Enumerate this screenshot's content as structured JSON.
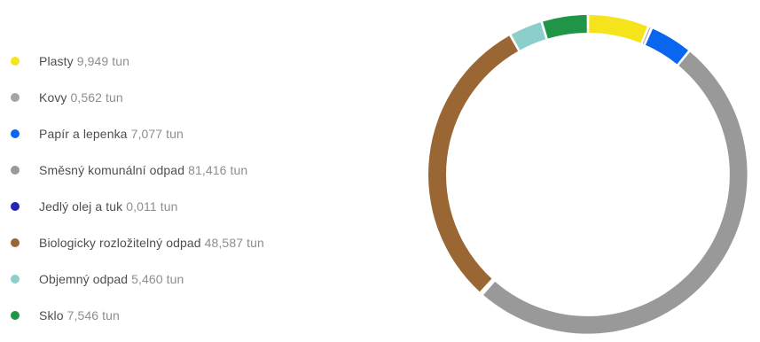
{
  "chart_data": {
    "type": "donut",
    "title": "",
    "legend_position": "left",
    "unit": "tun",
    "series": [
      {
        "name": "Plasty",
        "value": 9.949,
        "label": "9,949 tun",
        "color": "#f5e31c"
      },
      {
        "name": "Kovy",
        "value": 0.562,
        "label": "0,562 tun",
        "color": "#a4a4a4"
      },
      {
        "name": "Papír a lepenka",
        "value": 7.077,
        "label": "7,077 tun",
        "color": "#0a66ee"
      },
      {
        "name": "Směsný komunální odpad",
        "value": 81.416,
        "label": "81,416 tun",
        "color": "#999999"
      },
      {
        "name": "Jedlý olej a tuk",
        "value": 0.011,
        "label": "0,011 tun",
        "color": "#2525b5"
      },
      {
        "name": "Biologicky rozložitelný odpad",
        "value": 48.587,
        "label": "48,587 tun",
        "color": "#9a6633"
      },
      {
        "name": "Objemný odpad",
        "value": 5.46,
        "label": "5,460 tun",
        "color": "#8ccfca"
      },
      {
        "name": "Sklo",
        "value": 7.546,
        "label": "7,546 tun",
        "color": "#209447"
      }
    ]
  }
}
